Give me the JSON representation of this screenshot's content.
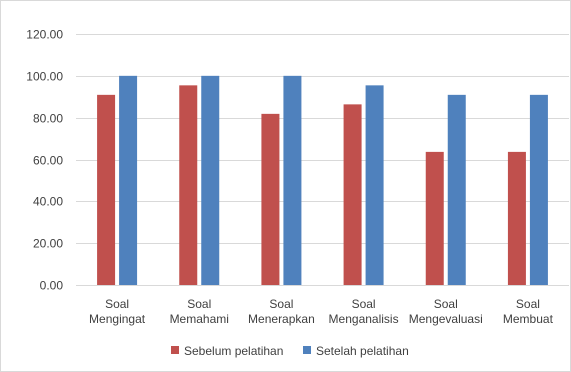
{
  "chart_data": {
    "type": "bar",
    "categories": [
      [
        "Soal",
        "Mengingat"
      ],
      [
        "Soal",
        "Memahami"
      ],
      [
        "Soal",
        "Menerapkan"
      ],
      [
        "Soal",
        "Menganalisis"
      ],
      [
        "Soal",
        "Mengevaluasi"
      ],
      [
        "Soal",
        "Membuat"
      ]
    ],
    "series": [
      {
        "name": "Sebelum pelatihan",
        "color": "#c0504d",
        "values": [
          90.91,
          95.45,
          81.82,
          86.36,
          63.64,
          63.64
        ]
      },
      {
        "name": "Setelah pelatihan",
        "color": "#4f81bd",
        "values": [
          100.0,
          100.0,
          100.0,
          95.45,
          90.91,
          90.91
        ]
      }
    ],
    "ylim": [
      0,
      120
    ],
    "yticks": [
      "0.00",
      "20.00",
      "40.00",
      "60.00",
      "80.00",
      "100.00",
      "120.00"
    ],
    "ytick_values": [
      0,
      20,
      40,
      60,
      80,
      100,
      120
    ],
    "grid": true,
    "legend_position": "bottom",
    "title": "",
    "xlabel": "",
    "ylabel": ""
  }
}
